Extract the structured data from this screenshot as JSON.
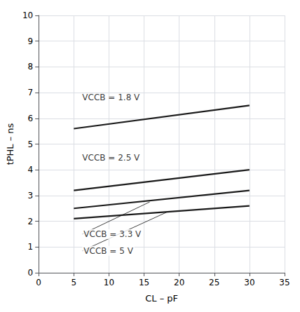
{
  "chart_data": {
    "type": "line",
    "xlabel": "CL – pF",
    "ylabel": "tPHL – ns",
    "xlim": [
      0,
      35
    ],
    "ylim": [
      0,
      10
    ],
    "xticks": [
      0,
      5,
      10,
      15,
      20,
      25,
      30,
      35
    ],
    "yticks": [
      0,
      1,
      2,
      3,
      4,
      5,
      6,
      7,
      8,
      9,
      10
    ],
    "grid": true,
    "series": [
      {
        "x": [
          5,
          30
        ],
        "values": [
          5.6,
          6.5
        ],
        "color": "#1a1a1a"
      },
      {
        "x": [
          5,
          30
        ],
        "values": [
          3.2,
          4.0
        ],
        "color": "#1a1a1a"
      },
      {
        "x": [
          5,
          30
        ],
        "values": [
          2.5,
          3.2
        ],
        "color": "#1a1a1a"
      },
      {
        "x": [
          5,
          30
        ],
        "values": [
          2.1,
          2.6
        ],
        "color": "#1a1a1a"
      }
    ],
    "annotations": [
      {
        "text": "VCCB = 1.8 V",
        "x": 6.2,
        "y": 6.65
      },
      {
        "text": "VCCB = 2.5 V",
        "x": 6.2,
        "y": 4.3
      },
      {
        "text": "VCCB = 3.3 V",
        "x": 6.2,
        "y": 1.5,
        "arrow_to": [
          15.8,
          2.75
        ]
      },
      {
        "text": "VCCB = 5 V",
        "x": 6.2,
        "y": 0.85,
        "arrow_to": [
          18.2,
          2.35
        ]
      }
    ]
  }
}
